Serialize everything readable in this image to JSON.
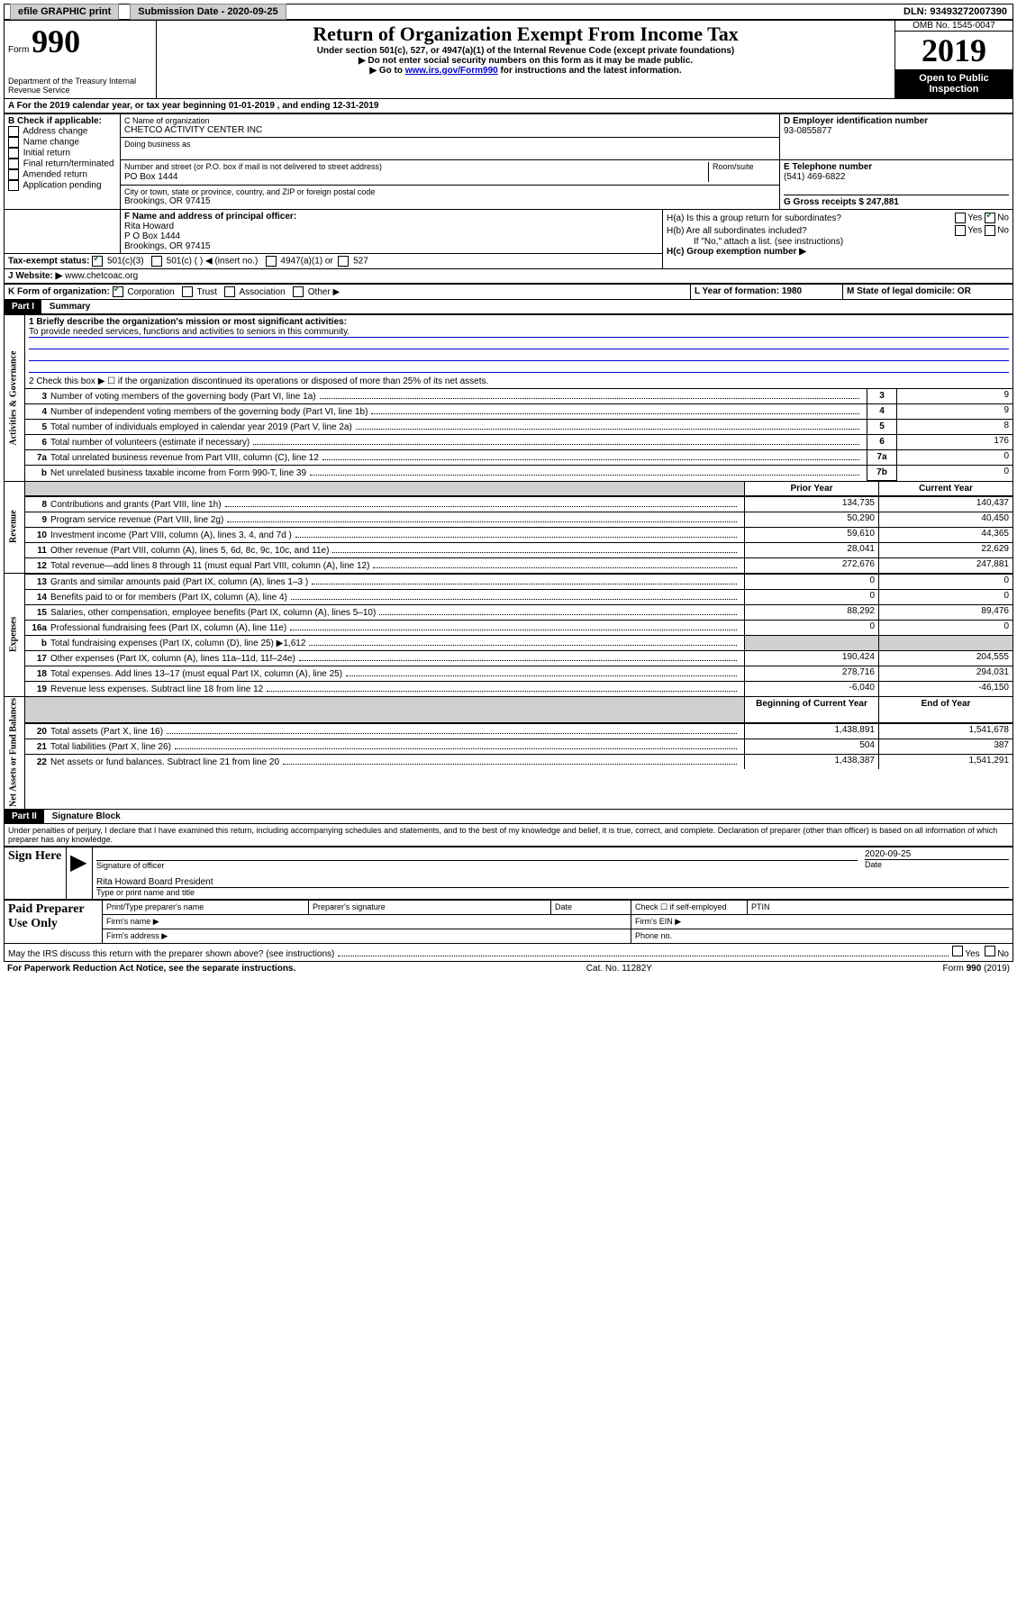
{
  "topbar": {
    "efile": "efile GRAPHIC print",
    "submission_label": "Submission Date - 2020-09-25",
    "dln": "DLN: 93493272007390"
  },
  "header": {
    "form_prefix": "Form",
    "form_number": "990",
    "dept": "Department of the Treasury\nInternal Revenue Service",
    "title": "Return of Organization Exempt From Income Tax",
    "subtitle": "Under section 501(c), 527, or 4947(a)(1) of the Internal Revenue Code (except private foundations)",
    "note1": "▶ Do not enter social security numbers on this form as it may be made public.",
    "note2_pre": "▶ Go to ",
    "note2_link": "www.irs.gov/Form990",
    "note2_post": " for instructions and the latest information.",
    "omb": "OMB No. 1545-0047",
    "year": "2019",
    "inspection": "Open to Public Inspection"
  },
  "A": {
    "text": "A  For the 2019 calendar year, or tax year beginning 01-01-2019    , and ending 12-31-2019"
  },
  "B": {
    "label": "B Check if applicable:",
    "items": [
      "Address change",
      "Name change",
      "Initial return",
      "Final return/terminated",
      "Amended return",
      "Application pending"
    ]
  },
  "C": {
    "name_label": "C Name of organization",
    "name": "CHETCO ACTIVITY CENTER INC",
    "dba_label": "Doing business as",
    "addr_label": "Number and street (or P.O. box if mail is not delivered to street address)",
    "addr": "PO Box 1444",
    "room_label": "Room/suite",
    "city_label": "City or town, state or province, country, and ZIP or foreign postal code",
    "city": "Brookings, OR  97415"
  },
  "D": {
    "label": "D Employer identification number",
    "value": "93-0855877"
  },
  "E": {
    "label": "E Telephone number",
    "value": "(541) 469-6822"
  },
  "G": {
    "label": "G Gross receipts $ 247,881"
  },
  "F": {
    "label": "F  Name and address of principal officer:",
    "name": "Rita Howard",
    "addr": "P O Box 1444\nBrookings, OR  97415"
  },
  "H": {
    "a": "H(a)  Is this a group return for subordinates?",
    "a_yes": "Yes",
    "a_no": "No",
    "b": "H(b)  Are all subordinates included?",
    "b_note": "If \"No,\" attach a list. (see instructions)",
    "c": "H(c)  Group exemption number ▶"
  },
  "I": {
    "label": "Tax-exempt status:",
    "opt1": "501(c)(3)",
    "opt2": "501(c) (   ) ◀ (insert no.)",
    "opt3": "4947(a)(1) or",
    "opt4": "527"
  },
  "J": {
    "label": "J   Website: ▶",
    "value": "www.chetcoac.org"
  },
  "K": {
    "label": "K Form of organization:",
    "opts": [
      "Corporation",
      "Trust",
      "Association",
      "Other ▶"
    ]
  },
  "L": {
    "label": "L Year of formation: 1980"
  },
  "M": {
    "label": "M State of legal domicile: OR"
  },
  "part1": {
    "header": "Part I",
    "title": "Summary",
    "line1_label": "1  Briefly describe the organization's mission or most significant activities:",
    "line1_value": "To provide needed services, functions and activities to seniors in this community.",
    "line2": "2  Check this box ▶ ☐  if the organization discontinued its operations or disposed of more than 25% of its net assets.",
    "rows_gov": [
      {
        "n": "3",
        "t": "Number of voting members of the governing body (Part VI, line 1a)",
        "box": "3",
        "v": "9"
      },
      {
        "n": "4",
        "t": "Number of independent voting members of the governing body (Part VI, line 1b)",
        "box": "4",
        "v": "9"
      },
      {
        "n": "5",
        "t": "Total number of individuals employed in calendar year 2019 (Part V, line 2a)",
        "box": "5",
        "v": "8"
      },
      {
        "n": "6",
        "t": "Total number of volunteers (estimate if necessary)",
        "box": "6",
        "v": "176"
      },
      {
        "n": "7a",
        "t": "Total unrelated business revenue from Part VIII, column (C), line 12",
        "box": "7a",
        "v": "0"
      },
      {
        "n": "b",
        "t": "Net unrelated business taxable income from Form 990-T, line 39",
        "box": "7b",
        "v": "0"
      }
    ],
    "prior_year": "Prior Year",
    "current_year": "Current Year",
    "rows_rev": [
      {
        "n": "8",
        "t": "Contributions and grants (Part VIII, line 1h)",
        "p": "134,735",
        "c": "140,437"
      },
      {
        "n": "9",
        "t": "Program service revenue (Part VIII, line 2g)",
        "p": "50,290",
        "c": "40,450"
      },
      {
        "n": "10",
        "t": "Investment income (Part VIII, column (A), lines 3, 4, and 7d )",
        "p": "59,610",
        "c": "44,365"
      },
      {
        "n": "11",
        "t": "Other revenue (Part VIII, column (A), lines 5, 6d, 8c, 9c, 10c, and 11e)",
        "p": "28,041",
        "c": "22,629"
      },
      {
        "n": "12",
        "t": "Total revenue—add lines 8 through 11 (must equal Part VIII, column (A), line 12)",
        "p": "272,676",
        "c": "247,881"
      }
    ],
    "rows_exp": [
      {
        "n": "13",
        "t": "Grants and similar amounts paid (Part IX, column (A), lines 1–3 )",
        "p": "0",
        "c": "0"
      },
      {
        "n": "14",
        "t": "Benefits paid to or for members (Part IX, column (A), line 4)",
        "p": "0",
        "c": "0"
      },
      {
        "n": "15",
        "t": "Salaries, other compensation, employee benefits (Part IX, column (A), lines 5–10)",
        "p": "88,292",
        "c": "89,476"
      },
      {
        "n": "16a",
        "t": "Professional fundraising fees (Part IX, column (A), line 11e)",
        "p": "0",
        "c": "0"
      },
      {
        "n": "b",
        "t": "Total fundraising expenses (Part IX, column (D), line 25) ▶1,612",
        "p": "",
        "c": "",
        "shade": true
      },
      {
        "n": "17",
        "t": "Other expenses (Part IX, column (A), lines 11a–11d, 11f–24e)",
        "p": "190,424",
        "c": "204,555"
      },
      {
        "n": "18",
        "t": "Total expenses. Add lines 13–17 (must equal Part IX, column (A), line 25)",
        "p": "278,716",
        "c": "294,031"
      },
      {
        "n": "19",
        "t": "Revenue less expenses. Subtract line 18 from line 12",
        "p": "-6,040",
        "c": "-46,150"
      }
    ],
    "beg_year": "Beginning of Current Year",
    "end_year": "End of Year",
    "rows_net": [
      {
        "n": "20",
        "t": "Total assets (Part X, line 16)",
        "p": "1,438,891",
        "c": "1,541,678"
      },
      {
        "n": "21",
        "t": "Total liabilities (Part X, line 26)",
        "p": "504",
        "c": "387"
      },
      {
        "n": "22",
        "t": "Net assets or fund balances. Subtract line 21 from line 20",
        "p": "1,438,387",
        "c": "1,541,291"
      }
    ],
    "sidebars": {
      "gov": "Activities & Governance",
      "rev": "Revenue",
      "exp": "Expenses",
      "net": "Net Assets or Fund Balances"
    }
  },
  "part2": {
    "header": "Part II",
    "title": "Signature Block",
    "perjury": "Under penalties of perjury, I declare that I have examined this return, including accompanying schedules and statements, and to the best of my knowledge and belief, it is true, correct, and complete. Declaration of preparer (other than officer) is based on all information of which preparer has any knowledge.",
    "sign_here": "Sign Here",
    "sig_officer": "Signature of officer",
    "date_val": "2020-09-25",
    "date_label": "Date",
    "name_title": "Rita Howard  Board President",
    "name_title_label": "Type or print name and title",
    "paid": "Paid Preparer Use Only",
    "prep_name": "Print/Type preparer's name",
    "prep_sig": "Preparer's signature",
    "prep_date": "Date",
    "self_emp": "Check ☐ if self-employed",
    "ptin": "PTIN",
    "firm_name": "Firm's name   ▶",
    "firm_ein": "Firm's EIN ▶",
    "firm_addr": "Firm's address ▶",
    "phone": "Phone no.",
    "discuss": "May the IRS discuss this return with the preparer shown above? (see instructions)",
    "yes": "Yes",
    "no": "No"
  },
  "footer": {
    "paperwork": "For Paperwork Reduction Act Notice, see the separate instructions.",
    "cat": "Cat. No. 11282Y",
    "form": "Form 990 (2019)"
  }
}
